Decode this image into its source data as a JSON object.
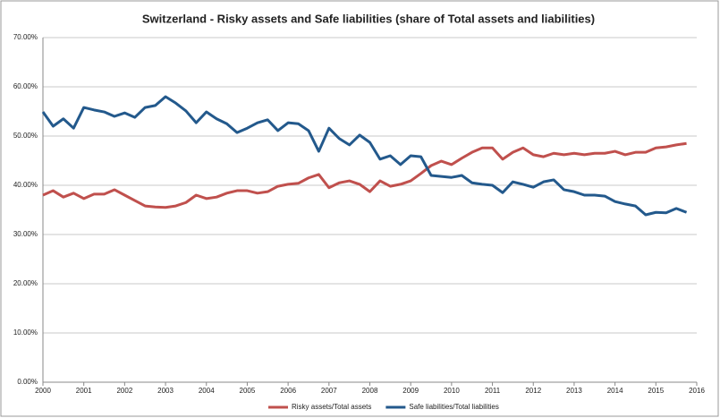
{
  "chart_data": {
    "type": "line",
    "title": "Switzerland - Risky assets and Safe liabilities (share of Total assets and liabilities)",
    "x": [
      2000,
      2000.25,
      2000.5,
      2000.75,
      2001,
      2001.25,
      2001.5,
      2001.75,
      2002,
      2002.25,
      2002.5,
      2002.75,
      2003,
      2003.25,
      2003.5,
      2003.75,
      2004,
      2004.25,
      2004.5,
      2004.75,
      2005,
      2005.25,
      2005.5,
      2005.75,
      2006,
      2006.25,
      2006.5,
      2006.75,
      2007,
      2007.25,
      2007.5,
      2007.75,
      2008,
      2008.25,
      2008.5,
      2008.75,
      2009,
      2009.25,
      2009.5,
      2009.75,
      2010,
      2010.25,
      2010.5,
      2010.75,
      2011,
      2011.25,
      2011.5,
      2011.75,
      2012,
      2012.25,
      2012.5,
      2012.75,
      2013,
      2013.25,
      2013.5,
      2013.75,
      2014,
      2014.25,
      2014.5,
      2014.75,
      2015,
      2015.25,
      2015.5,
      2015.75
    ],
    "series": [
      {
        "name": "Risky assets/Total assets",
        "color": "#c0504d",
        "values": [
          38.0,
          38.9,
          37.6,
          38.4,
          37.3,
          38.2,
          38.2,
          39.1,
          38.0,
          36.9,
          35.8,
          35.6,
          35.5,
          35.8,
          36.5,
          38.0,
          37.3,
          37.6,
          38.4,
          38.9,
          38.9,
          38.4,
          38.7,
          39.8,
          40.2,
          40.4,
          41.5,
          42.2,
          39.5,
          40.5,
          40.9,
          40.2,
          38.7,
          40.9,
          39.8,
          40.2,
          40.9,
          42.4,
          44.0,
          44.9,
          44.2,
          45.5,
          46.7,
          47.6,
          47.6,
          45.3,
          46.7,
          47.6,
          46.2,
          45.8,
          46.5,
          46.2,
          46.5,
          46.2,
          46.5,
          46.5,
          46.9,
          46.2,
          46.7,
          46.7,
          47.6,
          47.8,
          48.2,
          48.5
        ]
      },
      {
        "name": "Safe liabilities/Total liabilities",
        "color": "#23598c",
        "values": [
          54.9,
          52.0,
          53.5,
          51.6,
          55.8,
          55.3,
          54.9,
          54.0,
          54.7,
          53.8,
          55.8,
          56.2,
          58.0,
          56.7,
          55.1,
          52.7,
          54.9,
          53.5,
          52.5,
          50.7,
          51.6,
          52.7,
          53.3,
          51.1,
          52.7,
          52.5,
          51.1,
          46.9,
          51.6,
          49.5,
          48.2,
          50.2,
          48.7,
          45.3,
          46.0,
          44.2,
          46.0,
          45.8,
          42.0,
          41.8,
          41.6,
          42.0,
          40.5,
          40.2,
          40.0,
          38.5,
          40.7,
          40.2,
          39.6,
          40.7,
          41.1,
          39.1,
          38.7,
          38.0,
          38.0,
          37.8,
          36.7,
          36.2,
          35.8,
          34.0,
          34.5,
          34.4,
          35.3,
          34.5
        ]
      }
    ],
    "xlim": [
      2000,
      2016
    ],
    "xticks": [
      2000,
      2001,
      2002,
      2003,
      2004,
      2005,
      2006,
      2007,
      2008,
      2009,
      2010,
      2011,
      2012,
      2013,
      2014,
      2015,
      2016
    ],
    "ylim": [
      0,
      70
    ],
    "yticks": [
      {
        "value": 0,
        "label": "0.00%"
      },
      {
        "value": 10,
        "label": "10.00%"
      },
      {
        "value": 20,
        "label": "20.00%"
      },
      {
        "value": 30,
        "label": "30.00%"
      },
      {
        "value": 40,
        "label": "40.00%"
      },
      {
        "value": 50,
        "label": "50.00%"
      },
      {
        "value": 60,
        "label": "60.00%"
      },
      {
        "value": 70,
        "label": "70.00%"
      }
    ],
    "grid": true,
    "legend": "bottom"
  }
}
